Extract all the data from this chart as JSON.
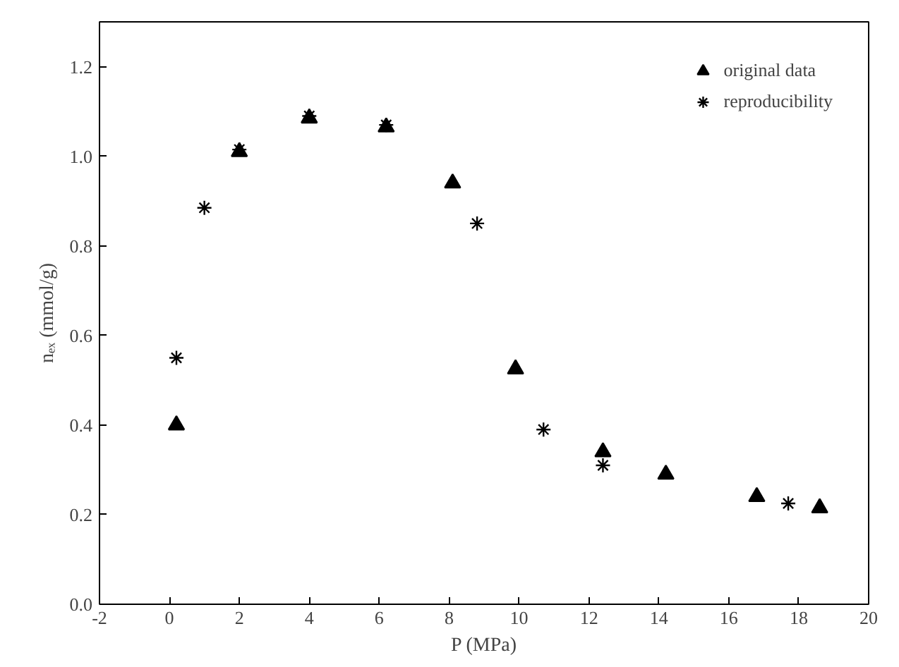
{
  "chart_data": {
    "type": "scatter",
    "xlabel": "P (MPa)",
    "ylabel": "nₑₓ (mmol/g)",
    "xlim": [
      -2,
      20
    ],
    "ylim": [
      0,
      1.3
    ],
    "xticks": [
      -2,
      0,
      2,
      4,
      6,
      8,
      10,
      12,
      14,
      16,
      18,
      20
    ],
    "yticks": [
      {
        "value": 0,
        "label": "0.0"
      },
      0.2,
      0.4,
      0.6,
      0.8,
      {
        "value": 1,
        "label": "1.0"
      },
      1.2
    ],
    "grid": false,
    "legend": "top right",
    "series": [
      {
        "name": "original data",
        "color": "#000000",
        "marker": "triangle",
        "x": [
          0.2,
          2.0,
          4.0,
          6.2,
          8.1,
          9.9,
          12.4,
          14.2,
          16.8,
          18.6
        ],
        "values": [
          0.4,
          1.01,
          1.085,
          1.065,
          0.94,
          0.525,
          0.34,
          0.29,
          0.24,
          0.215
        ]
      },
      {
        "name": "reproducibility",
        "color": "#000000",
        "marker": "cross",
        "x": [
          0.2,
          1.0,
          2.0,
          4.0,
          6.2,
          8.8,
          10.7,
          12.4,
          17.7
        ],
        "values": [
          0.55,
          0.885,
          1.015,
          1.09,
          1.07,
          0.85,
          0.39,
          0.31,
          0.225
        ]
      }
    ]
  }
}
